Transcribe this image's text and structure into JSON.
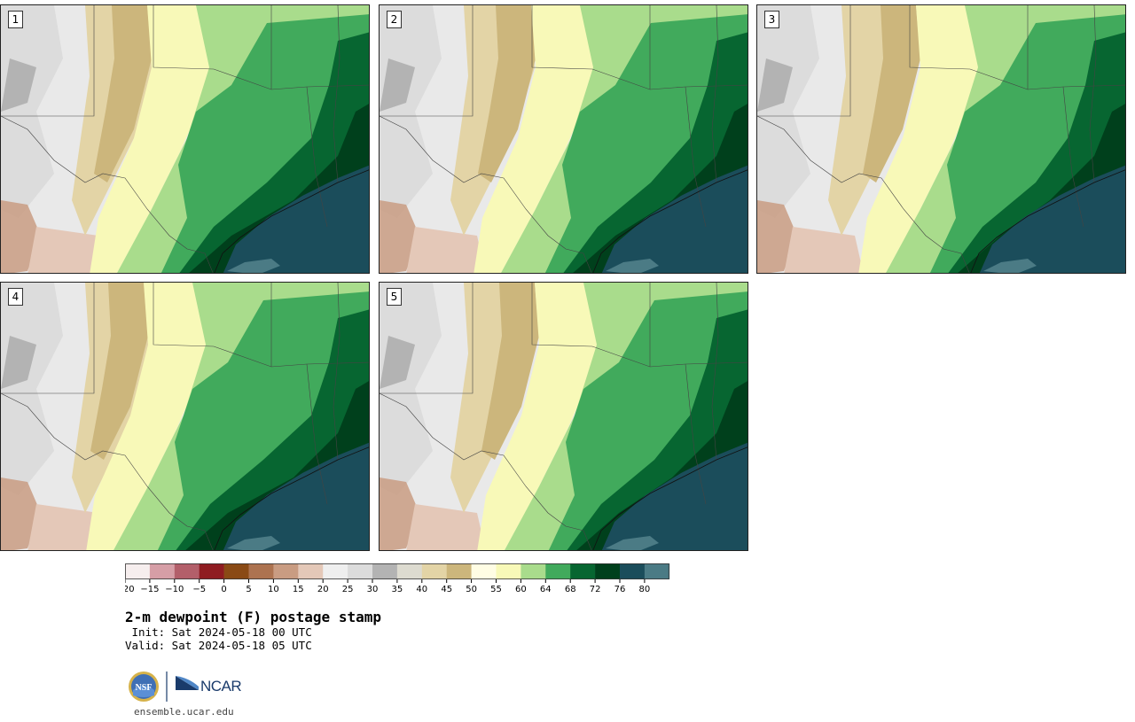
{
  "panels": [
    {
      "label": "1"
    },
    {
      "label": "2"
    },
    {
      "label": "3"
    },
    {
      "label": "4"
    },
    {
      "label": "5"
    }
  ],
  "colorbar": {
    "ticks": [
      "−20",
      "−15",
      "−10",
      "−5",
      "0",
      "5",
      "10",
      "15",
      "20",
      "25",
      "30",
      "35",
      "40",
      "45",
      "50",
      "55",
      "60",
      "64",
      "68",
      "72",
      "76",
      "80"
    ],
    "colors": [
      "#f6eeee",
      "#d69ea6",
      "#b35f6a",
      "#8f1c21",
      "#8a4a15",
      "#ad7350",
      "#c99c82",
      "#e4c8b8",
      "#efefef",
      "#dcdcdc",
      "#b3b3b3",
      "#dddbd0",
      "#e3d4a6",
      "#ccb67c",
      "#fffde4",
      "#f8f9b8",
      "#a9dc8c",
      "#41aa5c",
      "#076631",
      "#00401c",
      "#1b4d5b",
      "#4b7b85"
    ]
  },
  "title": "2-m dewpoint (F) postage stamp",
  "init": " Init: Sat 2024-05-18 00 UTC",
  "valid": "Valid: Sat 2024-05-18 05 UTC",
  "logos": {
    "nsf": "NSF",
    "ncar": "NCAR"
  },
  "website": "ensemble.ucar.edu",
  "colors": {
    "gulf": "#1b4d5b",
    "dark_green": "#00401c",
    "mid_green": "#076631",
    "green": "#41aa5c",
    "light_green": "#a9dc8c",
    "pale_yellow": "#f8f9b8",
    "tan": "#ccb67c",
    "light_tan": "#e3d4a6",
    "gray": "#b3b3b3",
    "light_gray": "#dcdcdc"
  }
}
